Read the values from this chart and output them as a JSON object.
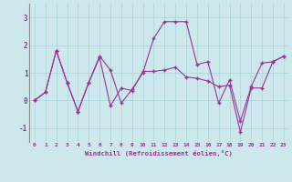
{
  "xlabel": "Windchill (Refroidissement éolien,°C)",
  "background_color": "#cce8ec",
  "line_color": "#993399",
  "grid_color": "#aad4d8",
  "xlim": [
    -0.5,
    23.5
  ],
  "ylim": [
    -1.5,
    3.5
  ],
  "yticks": [
    -1,
    0,
    1,
    2,
    3
  ],
  "xticks": [
    0,
    1,
    2,
    3,
    4,
    5,
    6,
    7,
    8,
    9,
    10,
    11,
    12,
    13,
    14,
    15,
    16,
    17,
    18,
    19,
    20,
    21,
    22,
    23
  ],
  "series1_x": [
    0,
    1,
    2,
    3,
    4,
    5,
    6,
    7,
    8,
    9,
    10,
    11,
    12,
    13,
    14,
    15,
    16,
    17,
    18,
    19,
    20,
    21,
    22,
    23
  ],
  "series1_y": [
    0.0,
    0.3,
    1.8,
    0.65,
    -0.4,
    0.65,
    1.6,
    1.1,
    -0.1,
    0.4,
    1.0,
    2.25,
    2.85,
    2.85,
    2.85,
    1.3,
    1.4,
    -0.1,
    0.75,
    -0.75,
    0.5,
    1.35,
    1.4,
    1.6
  ],
  "series3_x": [
    0,
    1,
    2,
    3,
    4,
    5,
    6,
    7,
    8,
    9,
    10,
    11,
    12,
    13,
    14,
    15,
    16,
    17,
    18,
    19,
    20,
    21,
    22,
    23
  ],
  "series3_y": [
    0.0,
    0.3,
    1.8,
    0.65,
    -0.4,
    0.65,
    1.55,
    -0.2,
    0.45,
    0.35,
    1.05,
    1.05,
    1.1,
    1.2,
    0.85,
    0.8,
    0.7,
    0.5,
    0.55,
    -1.15,
    0.45,
    0.45,
    1.4,
    1.6
  ]
}
